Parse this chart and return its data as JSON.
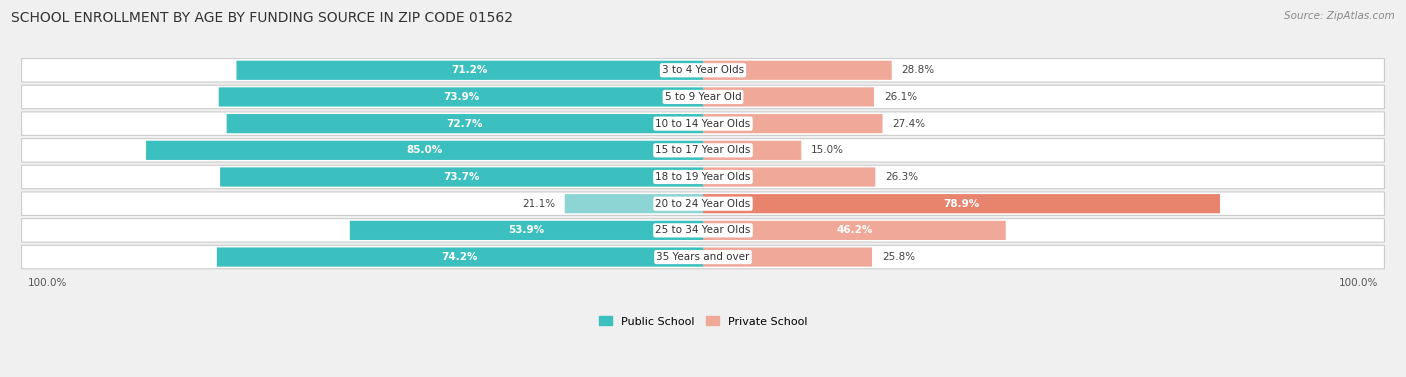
{
  "title": "SCHOOL ENROLLMENT BY AGE BY FUNDING SOURCE IN ZIP CODE 01562",
  "source": "Source: ZipAtlas.com",
  "categories": [
    "3 to 4 Year Olds",
    "5 to 9 Year Old",
    "10 to 14 Year Olds",
    "15 to 17 Year Olds",
    "18 to 19 Year Olds",
    "20 to 24 Year Olds",
    "25 to 34 Year Olds",
    "35 Years and over"
  ],
  "public_values": [
    71.2,
    73.9,
    72.7,
    85.0,
    73.7,
    21.1,
    53.9,
    74.2
  ],
  "private_values": [
    28.8,
    26.1,
    27.4,
    15.0,
    26.3,
    78.9,
    46.2,
    25.8
  ],
  "public_color_strong": "#3bbfbf",
  "public_color_light": "#8dd4d4",
  "private_color_strong": "#e8836e",
  "private_color_light": "#f0a898",
  "background_color": "#f0f0f0",
  "bar_background": "#ffffff",
  "title_fontsize": 10,
  "source_fontsize": 7.5,
  "label_fontsize": 7.5,
  "value_fontsize": 7.5,
  "legend_fontsize": 8,
  "max_scale": 100.0,
  "x_axis_label": "100.0%"
}
